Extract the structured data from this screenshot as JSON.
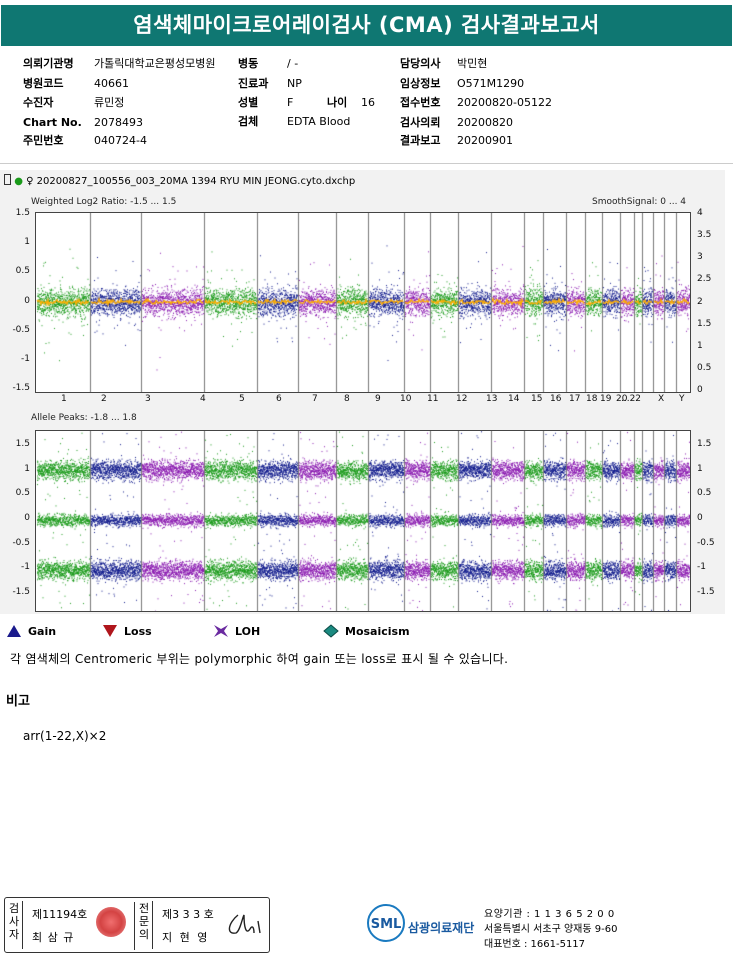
{
  "header": {
    "title": "염색체마이크로어레이검사 (CMA) 검사결과보고서"
  },
  "patient": {
    "institution_label": "의뢰기관명",
    "institution": "가톨릭대학교은평성모병원",
    "ward_label": "병동",
    "ward": "/ -",
    "doctor_label": "담당의사",
    "doctor": "박민현",
    "hospital_code_label": "병원코드",
    "hospital_code": "40661",
    "dept_label": "진료과",
    "dept": "NP",
    "clinical_label": "임상정보",
    "clinical": "O571M1290",
    "collector_label": "수진자",
    "collector": "류민정",
    "sex_label": "성별",
    "sex": "F",
    "age_label": "나이",
    "age": "16",
    "receipt_label": "접수번호",
    "receipt": "20200820-05122",
    "chart_label": "Chart No.",
    "chart": "2078493",
    "specimen_label": "검체",
    "specimen": "EDTA Blood",
    "request_label": "검사의뢰",
    "request": "20200820",
    "id_label": "주민번호",
    "id": "040724-4",
    "report_label": "결과보고",
    "report": "20200901"
  },
  "plot": {
    "file_name": "20200827_100556_003_20MA 1394 RYU MIN JEONG.cyto.dxchp",
    "sex_symbol": "♀",
    "top_title": "Weighted Log2 Ratio: -1.5 ... 1.5",
    "top_right_title": "SmoothSignal: 0 ... 4",
    "bottom_title": "Allele Peaks: -1.8 ... 1.8",
    "top_left_ticks": [
      "1.5",
      "1",
      "0.5",
      "0",
      "-0.5",
      "-1",
      "-1.5"
    ],
    "top_right_ticks": [
      "4",
      "3.5",
      "3",
      "2.5",
      "2",
      "1.5",
      "1",
      "0.5",
      "0"
    ],
    "bottom_left_ticks": [
      "1.5",
      "1",
      "0.5",
      "0",
      "-0.5",
      "-1",
      "-1.5"
    ],
    "bottom_right_ticks": [
      "1.5",
      "1",
      "0.5",
      "0",
      "-0.5",
      "-1",
      "-1.5"
    ],
    "chromosomes": [
      "1",
      "2",
      "3",
      "4",
      "5",
      "6",
      "7",
      "8",
      "9",
      "10",
      "11",
      "12",
      "13",
      "14",
      "15",
      "16",
      "17",
      "18",
      "19",
      "20",
      "...22",
      "X",
      "Y"
    ],
    "colors": {
      "green": "#1a9a1a",
      "navy": "#101a8c",
      "purple": "#8a1ab0",
      "smooth": "#ffae00",
      "panel": "#f2f2f2"
    }
  },
  "legend": [
    {
      "label": "Gain",
      "icon": "triangle-up-icon",
      "color": "#1a1a8c"
    },
    {
      "label": "Loss",
      "icon": "triangle-down-icon",
      "color": "#b0161c"
    },
    {
      "label": "LOH",
      "icon": "loh-icon",
      "color": "#6a2aa0"
    },
    {
      "label": "Mosaicism",
      "icon": "diamond-icon",
      "color": "#1a8a80"
    }
  ],
  "note": "각 염색체의 Centromeric 부위는 polymorphic 하여 gain 또는 loss로 표시 될 수 있습니다.",
  "remarks": {
    "title": "비고",
    "text": "arr(1-22,X)×2"
  },
  "footer": {
    "examiner_label": "검사자",
    "examiner_no": "제11194호",
    "examiner_name": "최 삼 규",
    "doctor_label": "전문의",
    "doctor_no": "제3 3 3 호",
    "doctor_name": "지 현 영",
    "logo_text": "SML",
    "org_name": "삼광의료재단",
    "care_no": "요양기관 : 1 1 3 6 5 2 0 0",
    "address": "서울특별시 서초구 양재동 9-60",
    "phone": "대표번호 : 1661-5117"
  }
}
